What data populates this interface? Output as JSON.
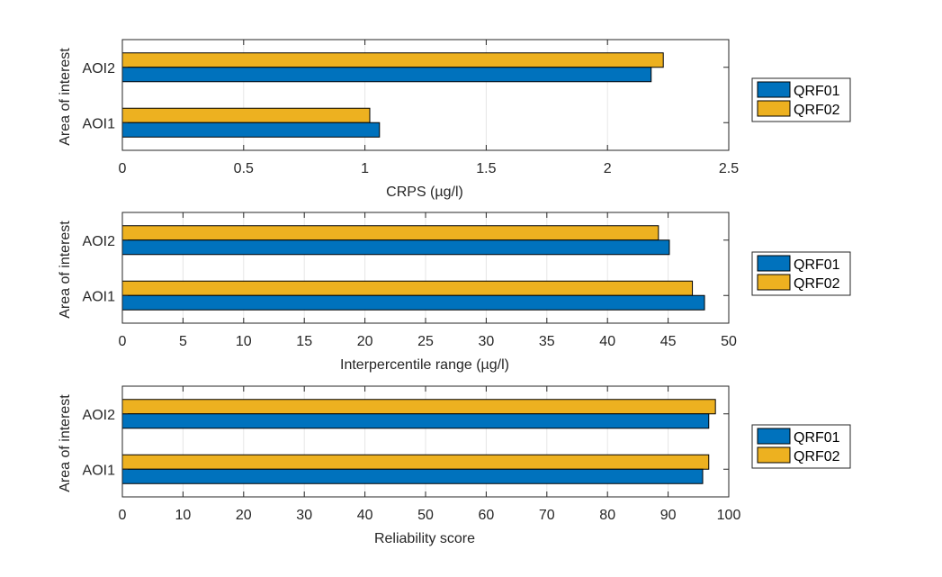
{
  "chart_data": [
    {
      "type": "bar",
      "orientation": "horizontal",
      "categories": [
        "AOI1",
        "AOI2"
      ],
      "series": [
        {
          "name": "QRF01",
          "color": "#0072BD",
          "values": [
            1.06,
            2.18
          ]
        },
        {
          "name": "QRF02",
          "color": "#EDB120",
          "values": [
            1.02,
            2.23
          ]
        }
      ],
      "xlabel": "CRPS (µg/l)",
      "ylabel": "Area of interest",
      "xlim": [
        0,
        2.5
      ],
      "xticks": [
        0,
        0.5,
        1,
        1.5,
        2,
        2.5
      ],
      "xtick_labels": [
        "0",
        "0.5",
        "1",
        "1.5",
        "2",
        "2.5"
      ],
      "grid": "vertical",
      "legend": "outside-right"
    },
    {
      "type": "bar",
      "orientation": "horizontal",
      "categories": [
        "AOI1",
        "AOI2"
      ],
      "series": [
        {
          "name": "QRF01",
          "color": "#0072BD",
          "values": [
            48.0,
            45.1
          ]
        },
        {
          "name": "QRF02",
          "color": "#EDB120",
          "values": [
            47.0,
            44.2
          ]
        }
      ],
      "xlabel": "Interpercentile range (µg/l)",
      "ylabel": "Area of interest",
      "xlim": [
        0,
        50
      ],
      "xticks": [
        0,
        5,
        10,
        15,
        20,
        25,
        30,
        35,
        40,
        45,
        50
      ],
      "xtick_labels": [
        "0",
        "5",
        "10",
        "15",
        "20",
        "25",
        "30",
        "35",
        "40",
        "45",
        "50"
      ],
      "grid": "vertical",
      "legend": "outside-right"
    },
    {
      "type": "bar",
      "orientation": "horizontal",
      "categories": [
        "AOI1",
        "AOI2"
      ],
      "series": [
        {
          "name": "QRF01",
          "color": "#0072BD",
          "values": [
            95.7,
            96.7
          ]
        },
        {
          "name": "QRF02",
          "color": "#EDB120",
          "values": [
            96.7,
            97.8
          ]
        }
      ],
      "xlabel": "Reliability score",
      "ylabel": "Area of interest",
      "xlim": [
        0,
        100
      ],
      "xticks": [
        0,
        10,
        20,
        30,
        40,
        50,
        60,
        70,
        80,
        90,
        100
      ],
      "xtick_labels": [
        "0",
        "10",
        "20",
        "30",
        "40",
        "50",
        "60",
        "70",
        "80",
        "90",
        "100"
      ],
      "grid": "vertical",
      "legend": "outside-right"
    }
  ]
}
